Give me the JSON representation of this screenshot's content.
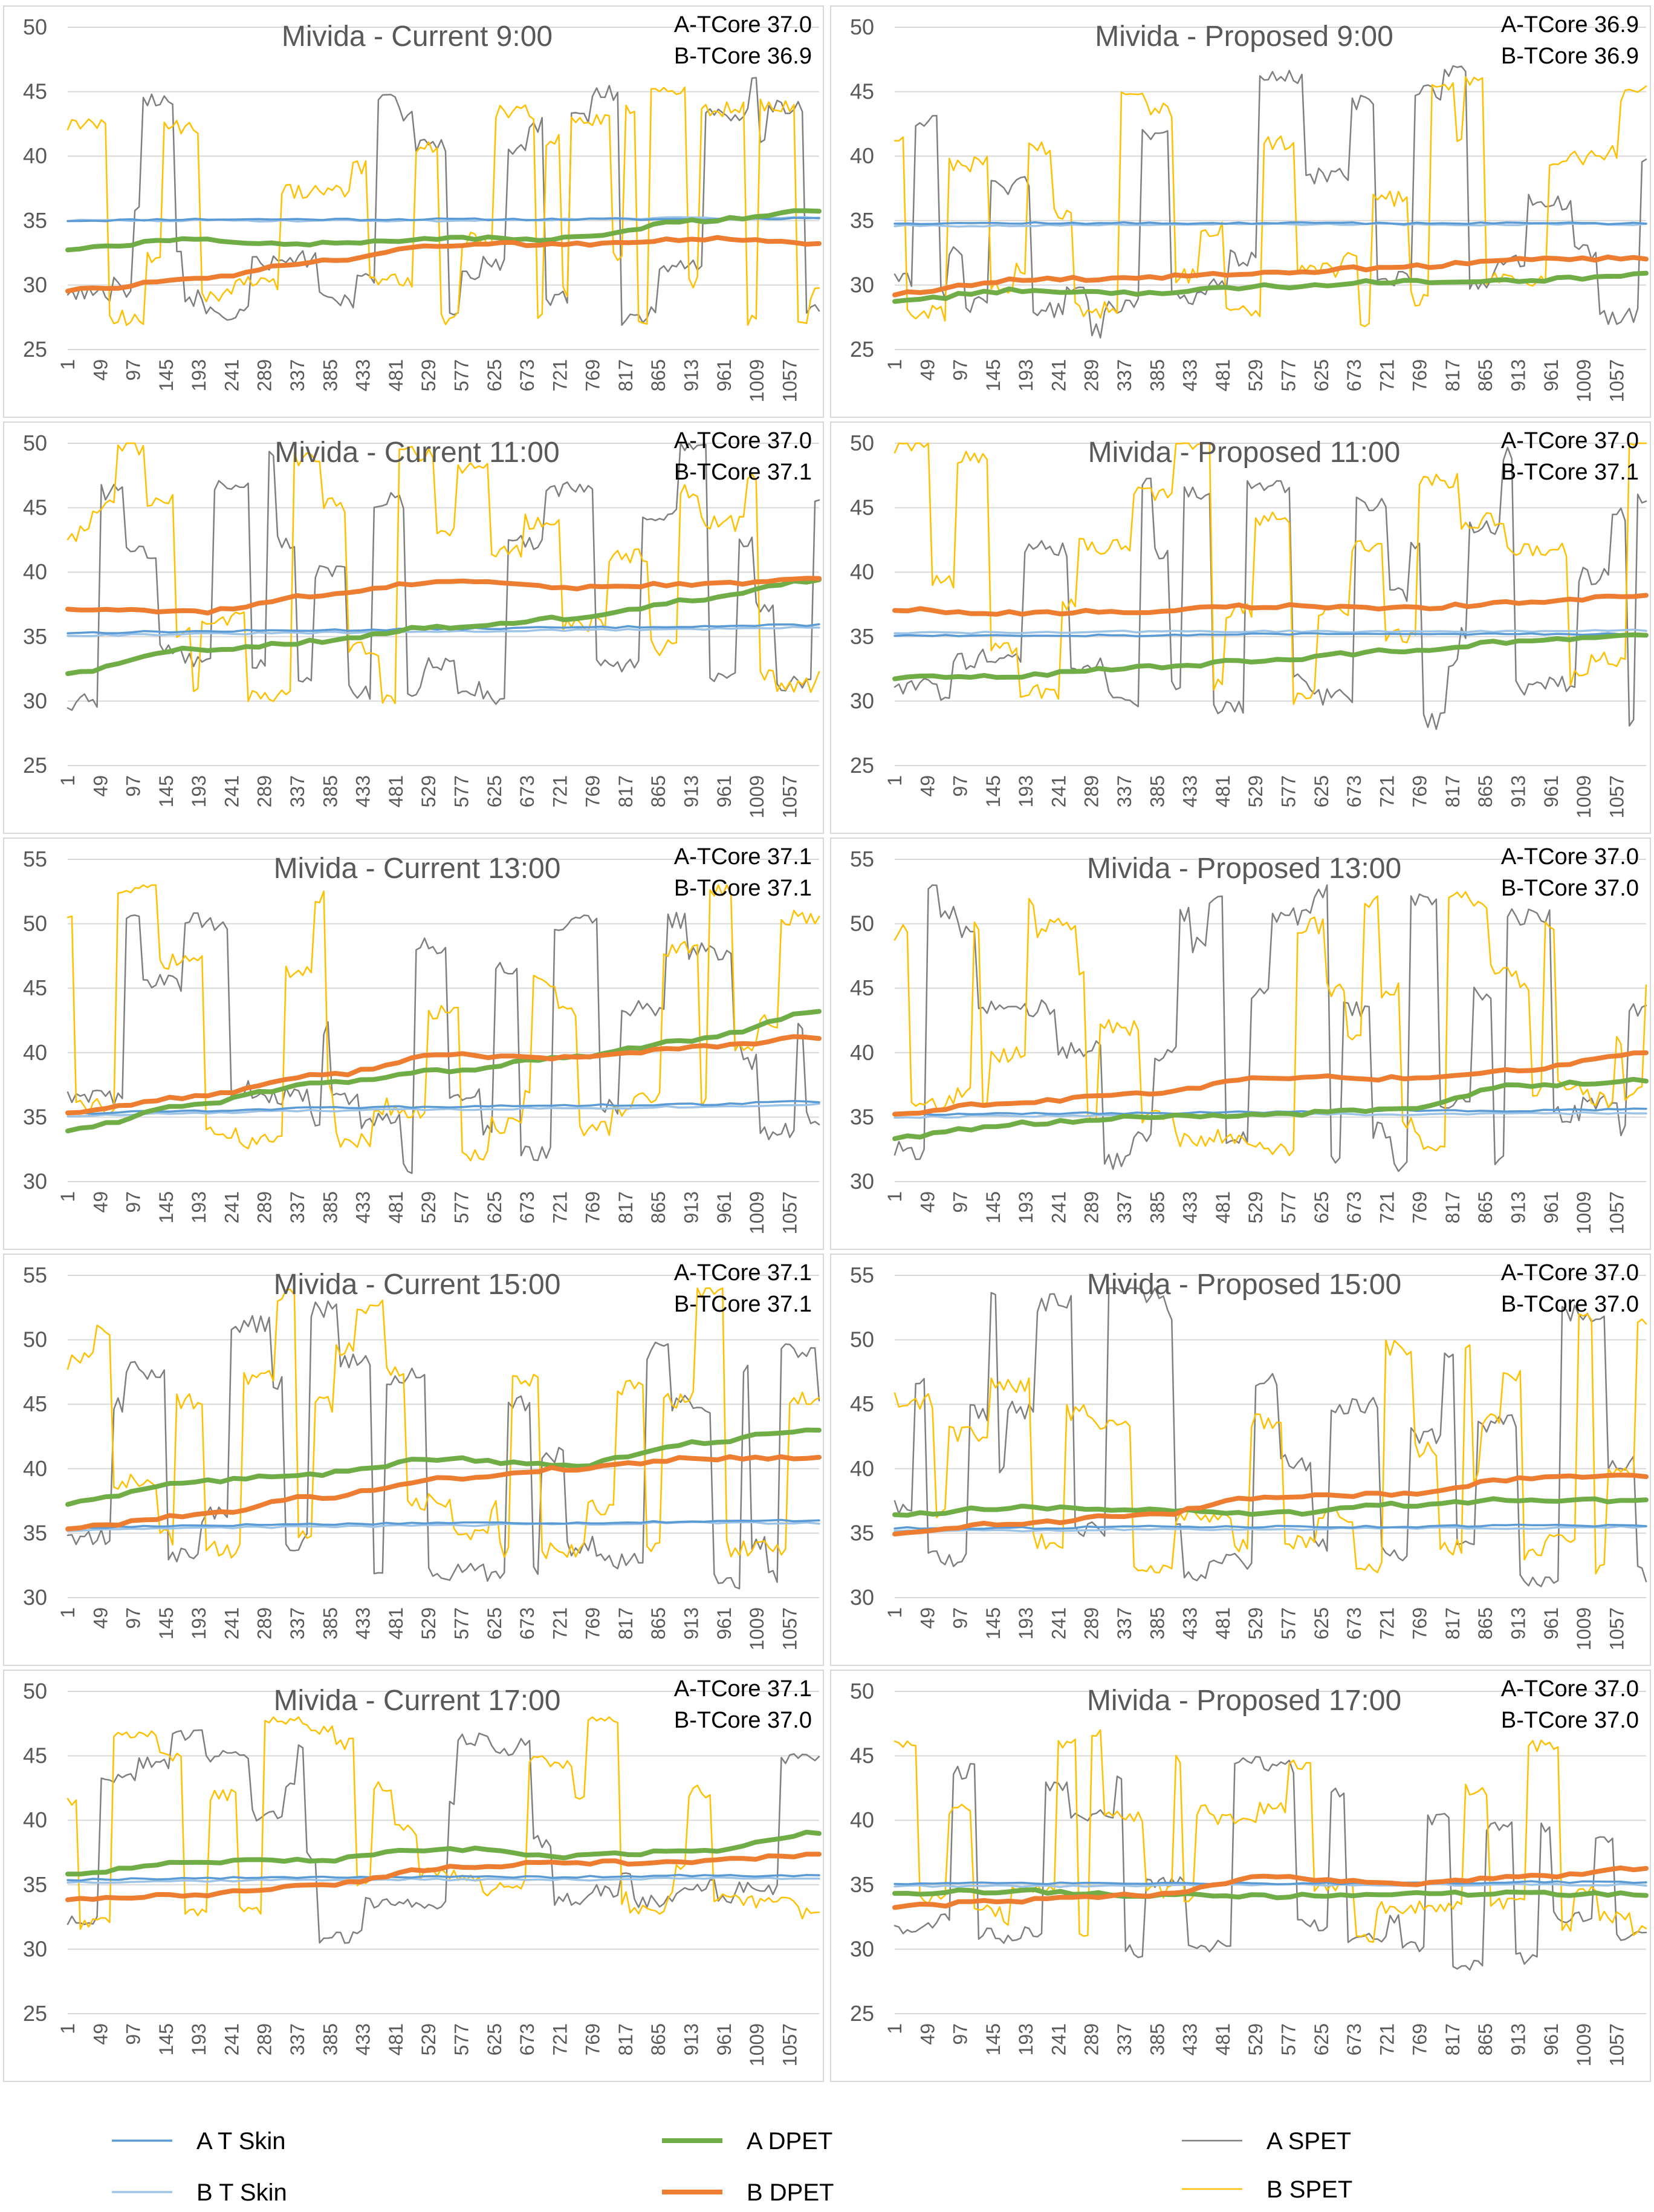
{
  "chart_data": {
    "type": "line",
    "layout": "5 rows x 2 columns of line charts with one shared legend",
    "x_ticks": [
      "1",
      "49",
      "97",
      "145",
      "193",
      "241",
      "289",
      "337",
      "385",
      "433",
      "481",
      "529",
      "577",
      "625",
      "673",
      "721",
      "769",
      "817",
      "865",
      "913",
      "961",
      "1009",
      "1057"
    ],
    "x_range": [
      1,
      1100
    ],
    "legend": [
      {
        "key": "a_tskin",
        "label": "A T Skin",
        "color": "#5b9bd5",
        "style": "thin"
      },
      {
        "key": "b_tskin",
        "label": "B T Skin",
        "color": "#9dc3e6",
        "style": "thin"
      },
      {
        "key": "a_dpet",
        "label": "A DPET",
        "color": "#70ad47",
        "style": "thick"
      },
      {
        "key": "b_dpet",
        "label": "B DPET",
        "color": "#ed7d31",
        "style": "thick"
      },
      {
        "key": "a_spet",
        "label": "A SPET",
        "color": "#7f7f7f",
        "style": "noisy"
      },
      {
        "key": "b_spet",
        "label": "B SPET",
        "color": "#ffc000",
        "style": "noisy"
      }
    ],
    "charts": [
      {
        "title": "Mivida - Current 9:00",
        "a_core": "A-TCore 37.0",
        "b_core": "B-TCore 36.9",
        "ylim": [
          25,
          50
        ],
        "yticks": [
          "25",
          "30",
          "35",
          "40",
          "45",
          "50"
        ],
        "series": {
          "a_tskin": [
            35.0,
            35.1,
            35.1,
            35.1,
            35.1,
            35.1,
            35.2
          ],
          "b_tskin": [
            35.0,
            35.0,
            35.0,
            35.0,
            35.1,
            35.2,
            35.2
          ],
          "a_dpet": [
            32.8,
            33.5,
            33.2,
            33.6,
            33.6,
            35.0,
            35.8
          ],
          "b_dpet": [
            29.6,
            30.4,
            31.8,
            33.1,
            33.2,
            33.6,
            33.2
          ],
          "a_spet": {
            "range": [
              26,
              47
            ]
          },
          "b_spet": {
            "range": [
              26,
              46
            ]
          }
        }
      },
      {
        "title": "Mivida - Proposed 9:00",
        "a_core": "A-TCore 36.9",
        "b_core": "B-TCore 36.9",
        "ylim": [
          25,
          50
        ],
        "yticks": [
          "25",
          "30",
          "35",
          "40",
          "45",
          "50"
        ],
        "series": {
          "a_tskin": [
            34.8,
            34.8,
            34.8,
            34.8,
            34.8,
            34.8,
            34.8
          ],
          "b_tskin": [
            34.6,
            34.6,
            34.7,
            34.7,
            34.7,
            34.7,
            34.7
          ],
          "a_dpet": [
            28.8,
            29.6,
            29.4,
            29.9,
            30.3,
            30.4,
            30.8
          ],
          "b_dpet": [
            29.3,
            30.4,
            30.6,
            30.9,
            31.4,
            32.0,
            32.1
          ],
          "a_spet": {
            "range": [
              25,
              47
            ]
          },
          "b_spet": {
            "range": [
              26,
              47
            ]
          }
        }
      },
      {
        "title": "Mivida - Current 11:00",
        "a_core": "A-TCore 37.0",
        "b_core": "B-TCore 37.1",
        "ylim": [
          25,
          50
        ],
        "yticks": [
          "25",
          "30",
          "35",
          "40",
          "45",
          "50"
        ],
        "series": {
          "a_tskin": [
            35.3,
            35.4,
            35.5,
            35.6,
            35.7,
            35.8,
            35.9
          ],
          "b_tskin": [
            35.1,
            35.2,
            35.3,
            35.4,
            35.5,
            35.6,
            35.7
          ],
          "a_dpet": [
            32.2,
            34.0,
            34.6,
            35.8,
            36.4,
            37.8,
            39.4
          ],
          "b_dpet": [
            37.2,
            36.9,
            38.2,
            39.3,
            38.8,
            39.1,
            39.4
          ],
          "a_spet": {
            "range": [
              28,
              50
            ]
          },
          "b_spet": {
            "range": [
              29,
              50
            ]
          }
        }
      },
      {
        "title": "Mivida - Proposed 11:00",
        "a_core": "A-TCore 37.0",
        "b_core": "B-TCore 37.1",
        "ylim": [
          25,
          50
        ],
        "yticks": [
          "25",
          "30",
          "35",
          "40",
          "45",
          "50"
        ],
        "series": {
          "a_tskin": [
            35.1,
            35.1,
            35.1,
            35.2,
            35.2,
            35.2,
            35.2
          ],
          "b_tskin": [
            35.3,
            35.3,
            35.4,
            35.4,
            35.4,
            35.4,
            35.5
          ],
          "a_dpet": [
            31.8,
            32.0,
            32.6,
            33.2,
            33.9,
            34.6,
            35.2
          ],
          "b_dpet": [
            37.1,
            36.8,
            37.0,
            37.4,
            37.2,
            37.6,
            38.2
          ],
          "a_spet": {
            "range": [
              27,
              50
            ]
          },
          "b_spet": {
            "range": [
              29,
              50
            ]
          }
        }
      },
      {
        "title": "Mivida - Current 13:00",
        "a_core": "A-TCore 37.1",
        "b_core": "B-TCore 37.1",
        "ylim": [
          30,
          55
        ],
        "yticks": [
          "30",
          "35",
          "40",
          "45",
          "50",
          "55"
        ],
        "series": {
          "a_tskin": [
            35.3,
            35.5,
            35.7,
            35.8,
            35.9,
            36.0,
            36.2
          ],
          "b_tskin": [
            35.1,
            35.3,
            35.5,
            35.6,
            35.7,
            35.8,
            36.0
          ],
          "a_dpet": [
            34.0,
            36.0,
            37.6,
            38.6,
            39.6,
            41.0,
            43.1
          ],
          "b_dpet": [
            35.4,
            36.6,
            38.2,
            39.8,
            39.6,
            40.4,
            41.2
          ],
          "a_spet": {
            "range": [
              30,
              54
            ]
          },
          "b_spet": {
            "range": [
              31,
              53
            ]
          }
        }
      },
      {
        "title": "Mivida - Proposed 13:00",
        "a_core": "A-TCore 37.0",
        "b_core": "B-TCore 37.0",
        "ylim": [
          30,
          55
        ],
        "yticks": [
          "30",
          "35",
          "40",
          "45",
          "50",
          "55"
        ],
        "series": {
          "a_tskin": [
            35.2,
            35.3,
            35.3,
            35.4,
            35.5,
            35.5,
            35.6
          ],
          "b_tskin": [
            35.0,
            35.1,
            35.1,
            35.2,
            35.2,
            35.3,
            35.3
          ],
          "a_dpet": [
            33.4,
            34.5,
            35.0,
            35.2,
            35.6,
            37.5,
            37.8
          ],
          "b_dpet": [
            35.3,
            36.2,
            36.8,
            38.1,
            38.0,
            38.7,
            39.9
          ],
          "a_spet": {
            "range": [
              30,
              53
            ]
          },
          "b_spet": {
            "range": [
              31,
              53
            ]
          }
        }
      },
      {
        "title": "Mivida - Current 15:00",
        "a_core": "A-TCore 37.1",
        "b_core": "B-TCore 37.1",
        "ylim": [
          30,
          55
        ],
        "yticks": [
          "30",
          "35",
          "40",
          "45",
          "50",
          "55"
        ],
        "series": {
          "a_tskin": [
            35.4,
            35.6,
            35.7,
            35.8,
            35.8,
            35.9,
            36.0
          ],
          "b_tskin": [
            35.2,
            35.4,
            35.5,
            35.6,
            35.7,
            35.8,
            35.8
          ],
          "a_dpet": [
            37.3,
            39.0,
            39.6,
            40.8,
            40.2,
            42.0,
            43.1
          ],
          "b_dpet": [
            35.4,
            36.4,
            37.8,
            39.2,
            40.0,
            40.8,
            40.9
          ],
          "a_spet": {
            "range": [
              30,
              54
            ]
          },
          "b_spet": {
            "range": [
              31,
              54
            ]
          }
        }
      },
      {
        "title": "Mivida - Proposed 15:00",
        "a_core": "A-TCore 37.0",
        "b_core": "B-TCore 37.0",
        "ylim": [
          30,
          55
        ],
        "yticks": [
          "30",
          "35",
          "40",
          "45",
          "50",
          "55"
        ],
        "series": {
          "a_tskin": [
            35.4,
            35.4,
            35.5,
            35.5,
            35.5,
            35.6,
            35.6
          ],
          "b_tskin": [
            35.2,
            35.2,
            35.3,
            35.3,
            35.4,
            35.4,
            35.5
          ],
          "a_dpet": [
            36.5,
            37.0,
            36.8,
            36.5,
            37.2,
            37.6,
            37.5
          ],
          "b_dpet": [
            35.0,
            35.8,
            36.4,
            37.8,
            38.0,
            39.2,
            39.5
          ],
          "a_spet": {
            "range": [
              30,
              54
            ]
          },
          "b_spet": {
            "range": [
              31,
              52
            ]
          }
        }
      },
      {
        "title": "Mivida - Current 17:00",
        "a_core": "A-TCore 37.1",
        "b_core": "B-TCore 37.0",
        "ylim": [
          25,
          50
        ],
        "yticks": [
          "25",
          "30",
          "35",
          "40",
          "45",
          "50"
        ],
        "series": {
          "a_tskin": [
            35.4,
            35.5,
            35.6,
            35.6,
            35.6,
            35.7,
            35.7
          ],
          "b_tskin": [
            35.2,
            35.3,
            35.4,
            35.4,
            35.4,
            35.5,
            35.5
          ],
          "a_dpet": [
            35.9,
            36.8,
            36.9,
            37.8,
            37.2,
            37.6,
            39.0
          ],
          "b_dpet": [
            33.9,
            34.2,
            35.0,
            36.3,
            36.7,
            36.8,
            37.3
          ],
          "a_spet": {
            "range": [
              30,
              47
            ]
          },
          "b_spet": {
            "range": [
              31,
              48
            ]
          }
        }
      },
      {
        "title": "Mivida - Proposed 17:00",
        "a_core": "A-TCore 37.0",
        "b_core": "B-TCore 37.0",
        "ylim": [
          25,
          50
        ],
        "yticks": [
          "25",
          "30",
          "35",
          "40",
          "45",
          "50"
        ],
        "series": {
          "a_tskin": [
            35.1,
            35.1,
            35.1,
            35.1,
            35.1,
            35.2,
            35.2
          ],
          "b_tskin": [
            34.9,
            34.9,
            34.9,
            35.0,
            35.0,
            35.0,
            35.0
          ],
          "a_dpet": [
            34.4,
            34.5,
            34.2,
            34.1,
            34.3,
            34.3,
            34.3
          ],
          "b_dpet": [
            33.3,
            33.8,
            34.2,
            35.6,
            35.1,
            35.6,
            36.3
          ],
          "a_spet": {
            "range": [
              28,
              45
            ]
          },
          "b_spet": {
            "range": [
              30,
              47
            ]
          }
        }
      }
    ]
  }
}
